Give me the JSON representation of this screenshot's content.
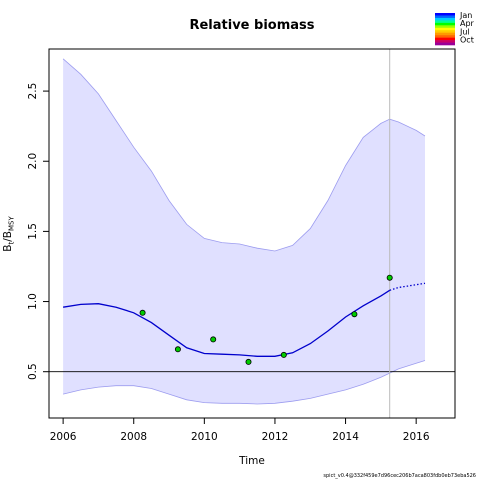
{
  "chart_data": {
    "type": "line",
    "title": "Relative biomass",
    "xlabel": "Time",
    "ylabel_main": "B",
    "ylabel_sub_t": "t",
    "ylabel_slash": "/B",
    "ylabel_sub_msy": "MSY",
    "xlim": [
      2005.6,
      2017.1
    ],
    "ylim": [
      0.17,
      2.8
    ],
    "x_ticks": [
      2006,
      2008,
      2010,
      2012,
      2014,
      2016
    ],
    "x_tick_labels": [
      "2006",
      "2008",
      "2010",
      "2012",
      "2014",
      "2016"
    ],
    "y_ticks": [
      0.5,
      1.0,
      1.5,
      2.0,
      2.5
    ],
    "y_tick_labels": [
      "0.5",
      "1.0",
      "1.5",
      "2.0",
      "2.5"
    ],
    "reference_line_y": 0.5,
    "vertical_line_x": 2015.25,
    "grid": false,
    "series": [
      {
        "role": "estimate",
        "style": "solid",
        "color": "#0000cc",
        "x": [
          2006,
          2006.5,
          2007,
          2007.5,
          2008,
          2008.5,
          2009,
          2009.5,
          2010,
          2010.5,
          2011,
          2011.5,
          2012,
          2012.5,
          2013,
          2013.5,
          2014,
          2014.5,
          2015,
          2015.25
        ],
        "y": [
          0.96,
          0.98,
          0.985,
          0.96,
          0.92,
          0.85,
          0.76,
          0.67,
          0.63,
          0.625,
          0.62,
          0.61,
          0.61,
          0.635,
          0.7,
          0.79,
          0.89,
          0.97,
          1.04,
          1.08
        ]
      },
      {
        "role": "prediction",
        "style": "dotted",
        "color": "#0000cc",
        "x": [
          2015.25,
          2015.5,
          2016,
          2016.25
        ],
        "y": [
          1.08,
          1.1,
          1.12,
          1.13
        ]
      }
    ],
    "band": {
      "color": "#e0e0ff",
      "edge_color": "#9c9cef",
      "x": [
        2006,
        2006.5,
        2007,
        2007.5,
        2008,
        2008.5,
        2009,
        2009.5,
        2010,
        2010.5,
        2011,
        2011.5,
        2012,
        2012.5,
        2013,
        2013.5,
        2014,
        2014.5,
        2015,
        2015.25,
        2015.5,
        2016,
        2016.25
      ],
      "upper": [
        2.73,
        2.62,
        2.48,
        2.29,
        2.1,
        1.93,
        1.72,
        1.55,
        1.45,
        1.42,
        1.41,
        1.38,
        1.36,
        1.4,
        1.52,
        1.72,
        1.97,
        2.17,
        2.27,
        2.3,
        2.28,
        2.22,
        2.18
      ],
      "lower": [
        0.34,
        0.37,
        0.39,
        0.4,
        0.4,
        0.38,
        0.34,
        0.3,
        0.28,
        0.275,
        0.275,
        0.27,
        0.275,
        0.29,
        0.31,
        0.34,
        0.37,
        0.41,
        0.46,
        0.49,
        0.52,
        0.56,
        0.58
      ]
    },
    "observations": {
      "fill": "#00cc00",
      "stroke": "#000000",
      "x": [
        2008.25,
        2009.25,
        2010.25,
        2011.25,
        2012.25,
        2014.25,
        2015.25
      ],
      "y": [
        0.92,
        0.66,
        0.73,
        0.57,
        0.62,
        0.91,
        1.17
      ]
    },
    "legend": {
      "placement": "top-right",
      "labels": [
        "Jan",
        "Apr",
        "Jul",
        "Oct"
      ],
      "colors": [
        "#0000ff",
        "#0066ff",
        "#00ccff",
        "#00ff99",
        "#00ff00",
        "#99ff00",
        "#ffff00",
        "#ffcc00",
        "#ff9900",
        "#ff6600",
        "#ff0000",
        "#cc0066",
        "#990099"
      ]
    }
  },
  "footer": {
    "version": "spict_v0.4@332f459e7d96cec206b7aca803fdb0eb73eba526"
  }
}
